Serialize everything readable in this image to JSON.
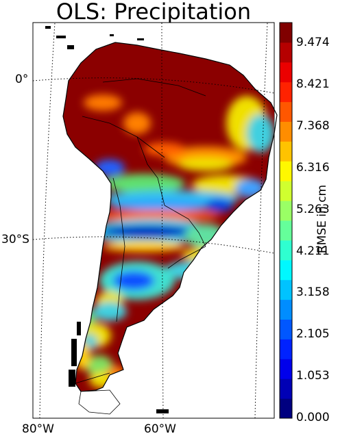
{
  "title": "OLS: Precipitation",
  "lat_labels": [
    "0°",
    "30°S"
  ],
  "lon_labels": [
    "80°W",
    "60°W"
  ],
  "colorbar": {
    "label": "RMSE in cm",
    "ticks": [
      "9.474",
      "8.421",
      "7.368",
      "6.316",
      "5.263",
      "4.211",
      "3.158",
      "2.105",
      "1.053",
      "0.000"
    ],
    "min": 0.0,
    "max": 10.0,
    "colormap": "jet"
  },
  "map": {
    "region": "South America",
    "projection": "conic",
    "graticule": "dotted",
    "colors": {
      "dark_red": "#8b0000",
      "red": "#d01010",
      "orange": "#ff7a00",
      "yellow": "#f0e000",
      "green": "#60e070",
      "cyan": "#20c0e0",
      "blue": "#1050ff",
      "navy": "#0000a0"
    }
  }
}
